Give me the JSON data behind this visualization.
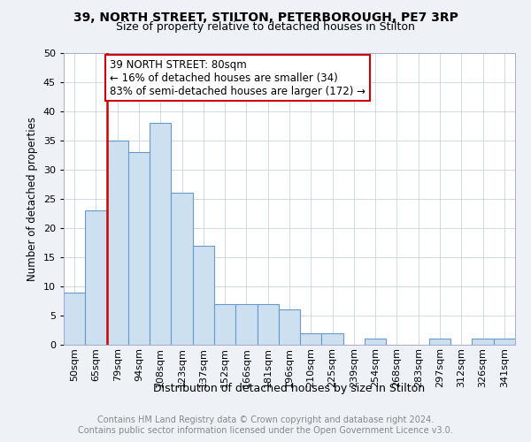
{
  "title_line1": "39, NORTH STREET, STILTON, PETERBOROUGH, PE7 3RP",
  "title_line2": "Size of property relative to detached houses in Stilton",
  "xlabel": "Distribution of detached houses by size in Stilton",
  "ylabel": "Number of detached properties",
  "categories": [
    "50sqm",
    "65sqm",
    "79sqm",
    "94sqm",
    "108sqm",
    "123sqm",
    "137sqm",
    "152sqm",
    "166sqm",
    "181sqm",
    "196sqm",
    "210sqm",
    "225sqm",
    "239sqm",
    "254sqm",
    "268sqm",
    "283sqm",
    "297sqm",
    "312sqm",
    "326sqm",
    "341sqm"
  ],
  "values": [
    9,
    23,
    35,
    33,
    38,
    26,
    17,
    7,
    7,
    7,
    6,
    2,
    2,
    0,
    1,
    0,
    0,
    1,
    0,
    1,
    1
  ],
  "bar_color": "#cce0f0",
  "bar_edge_color": "#6699cc",
  "highlight_color": "#cc0000",
  "red_line_index": 2,
  "annotation_box_text": "39 NORTH STREET: 80sqm\n← 16% of detached houses are smaller (34)\n83% of semi-detached houses are larger (172) →",
  "ylim": [
    0,
    50
  ],
  "yticks": [
    0,
    5,
    10,
    15,
    20,
    25,
    30,
    35,
    40,
    45,
    50
  ],
  "background_color": "#eef2f7",
  "plot_bg_color": "#ffffff",
  "grid_color": "#c8d4e0",
  "footer_line1": "Contains HM Land Registry data © Crown copyright and database right 2024.",
  "footer_line2": "Contains public sector information licensed under the Open Government Licence v3.0.",
  "title_fontsize": 10,
  "subtitle_fontsize": 9,
  "xlabel_fontsize": 9,
  "ylabel_fontsize": 8.5,
  "tick_fontsize": 8,
  "annotation_fontsize": 8.5,
  "footer_fontsize": 7
}
